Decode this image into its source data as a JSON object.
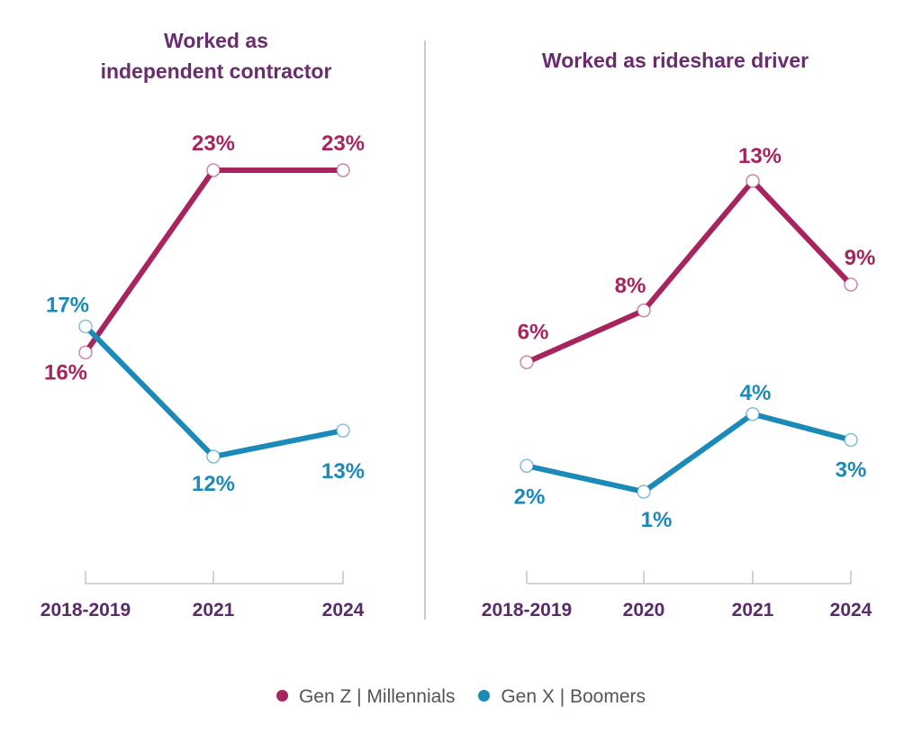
{
  "colors": {
    "genz_millennials": "#a8245e",
    "genx_boomers": "#1b8ab8",
    "title": "#6a2c6e",
    "axis": "#aaaaaa"
  },
  "legend": {
    "genz_millennials": "Gen Z  |  Millennials",
    "genx_boomers": "Gen X  |  Boomers"
  },
  "chart_data": [
    {
      "type": "line",
      "title": "Worked as independent contractor",
      "title_lines": [
        "Worked as",
        "independent contractor"
      ],
      "categories": [
        "2018-2019",
        "2021",
        "2024"
      ],
      "ylim": [
        0,
        30
      ],
      "series": [
        {
          "name": "Gen Z | Millennials",
          "color": "#a8245e",
          "values": [
            16,
            23,
            23
          ],
          "labels": [
            "16%",
            "23%",
            "23%"
          ]
        },
        {
          "name": "Gen X | Boomers",
          "color": "#1b8ab8",
          "values": [
            17,
            12,
            13
          ],
          "labels": [
            "17%",
            "12%",
            "13%"
          ]
        }
      ]
    },
    {
      "type": "line",
      "title": "Worked as rideshare driver",
      "title_lines": [
        "Worked as rideshare driver"
      ],
      "categories": [
        "2018-2019",
        "2020",
        "2021",
        "2024"
      ],
      "ylim": [
        0,
        15
      ],
      "series": [
        {
          "name": "Gen Z | Millennials",
          "color": "#a8245e",
          "values": [
            6,
            8,
            13,
            9
          ],
          "labels": [
            "6%",
            "8%",
            "13%",
            "9%"
          ]
        },
        {
          "name": "Gen X | Boomers",
          "color": "#1b8ab8",
          "values": [
            2,
            1,
            4,
            3
          ],
          "labels": [
            "2%",
            "1%",
            "4%",
            "3%"
          ]
        }
      ]
    }
  ]
}
